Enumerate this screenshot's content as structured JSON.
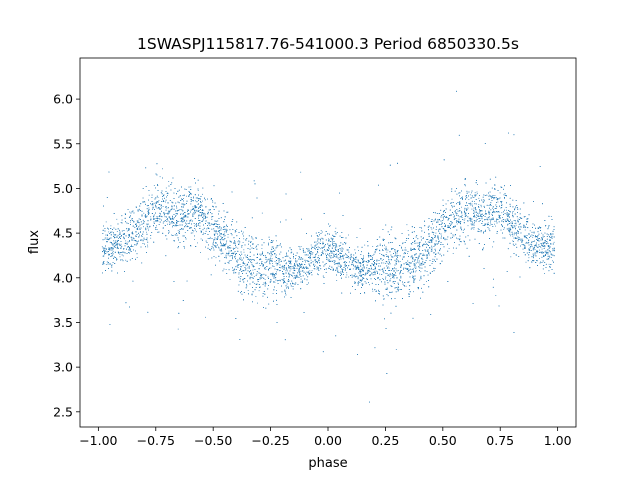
{
  "chart_data": {
    "type": "scatter",
    "title": "1SWASPJ115817.76-541000.3 Period 6850330.5s",
    "xlabel": "phase",
    "ylabel": "flux",
    "xlim": [
      -1.08,
      1.08
    ],
    "ylim": [
      2.33,
      6.46
    ],
    "xticks": [
      -1.0,
      -0.75,
      -0.5,
      -0.25,
      0.0,
      0.25,
      0.5,
      0.75,
      1.0
    ],
    "xtick_labels": [
      "−1.00",
      "−0.75",
      "−0.50",
      "−0.25",
      "0.00",
      "0.25",
      "0.50",
      "0.75",
      "1.00"
    ],
    "yticks": [
      2.5,
      3.0,
      3.5,
      4.0,
      4.5,
      5.0,
      5.5,
      6.0
    ],
    "ytick_labels": [
      "2.5",
      "3.0",
      "3.5",
      "4.0",
      "4.5",
      "5.0",
      "5.5",
      "6.0"
    ],
    "grid": false,
    "legend": "none",
    "series": [
      {
        "color": "#1f77b4",
        "marker": "point",
        "description_of_shape": "dense phase-folded light curve, mirrored at phase 0 (same curve on [-1,0] and [0,1])",
        "envelope": {
          "phase": [
            0.0,
            0.05,
            0.1,
            0.15,
            0.2,
            0.25,
            0.3,
            0.35,
            0.4,
            0.45,
            0.5,
            0.55,
            0.6,
            0.65,
            0.7,
            0.75,
            0.8,
            0.85,
            0.9,
            0.95,
            1.0
          ],
          "median_flux": [
            4.35,
            4.25,
            4.15,
            4.1,
            4.1,
            4.15,
            4.1,
            4.15,
            4.25,
            4.4,
            4.55,
            4.7,
            4.75,
            4.72,
            4.75,
            4.8,
            4.6,
            4.5,
            4.4,
            4.35,
            4.35
          ],
          "spread": [
            0.35,
            0.35,
            0.3,
            0.3,
            0.35,
            0.45,
            0.45,
            0.45,
            0.45,
            0.4,
            0.4,
            0.4,
            0.4,
            0.4,
            0.4,
            0.4,
            0.4,
            0.35,
            0.35,
            0.35,
            0.35
          ]
        },
        "point_count": 9000
      }
    ]
  }
}
